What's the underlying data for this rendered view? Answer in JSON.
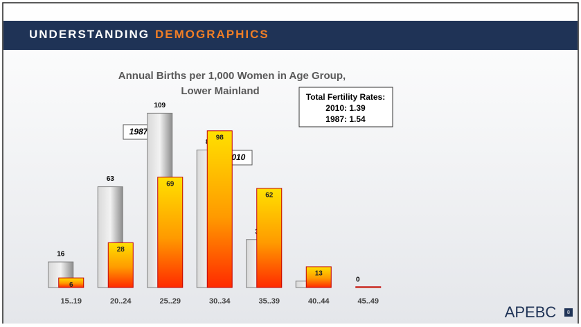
{
  "header": {
    "title_part1": "UNDERSTANDING",
    "title_part2": "DEMOGRAPHICS"
  },
  "chart_data": {
    "type": "bar",
    "title": [
      "Annual Births per 1,000 Women in Age Group,",
      "Lower Mainland"
    ],
    "categories": [
      "15..19",
      "20..24",
      "25..29",
      "30..34",
      "35..39",
      "40..44",
      "45..49"
    ],
    "series": [
      {
        "name": "1987",
        "color": "#a6a6a6",
        "values": [
          16,
          63,
          109,
          86,
          30,
          4,
          0
        ]
      },
      {
        "name": "2010",
        "color": "#ffc000",
        "values": [
          6,
          28,
          69,
          98,
          62,
          13,
          0.5
        ],
        "value_labels": [
          "6",
          "28",
          "69",
          "98",
          "62",
          "13",
          null
        ]
      }
    ],
    "ylim": [
      0,
      120
    ],
    "annotation": [
      "Total Fertility Rates:",
      "2010: 1.39",
      "1987: 1.54"
    ]
  },
  "footer": {
    "logo": "APEBC",
    "page": "8"
  }
}
